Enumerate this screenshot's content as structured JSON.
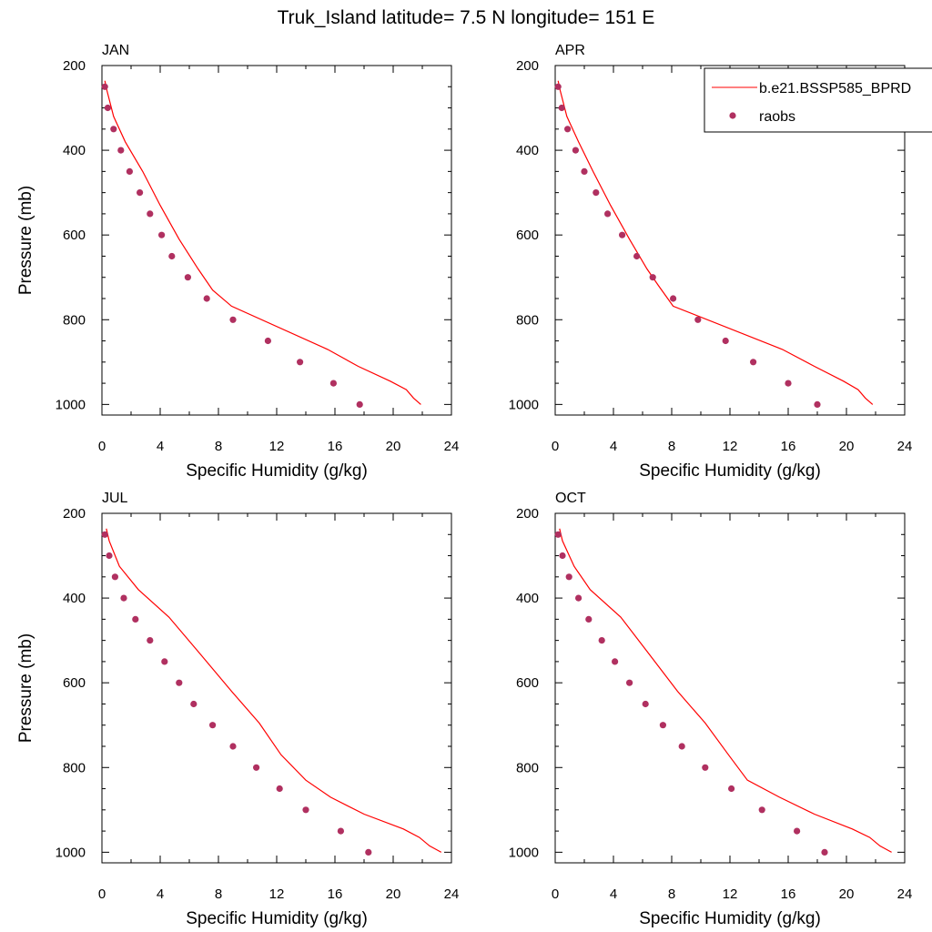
{
  "figure": {
    "title": "Truk_Island  latitude= 7.5 N longitude= 151 E"
  },
  "legend": {
    "model_label": "b.e21.BSSP585_BPRD",
    "obs_label": "raobs",
    "model_color": "#ff0000",
    "obs_color": "#b03060",
    "placement": "top-right of APR panel"
  },
  "chart_data": [
    {
      "type": "line",
      "title": "JAN",
      "xlabel": "Specific Humidity (g/kg)",
      "ylabel": "Pressure (mb)",
      "xlim": [
        0,
        24
      ],
      "ylim": [
        200,
        1025
      ],
      "y_reversed": true,
      "xticks": [
        "0",
        "4",
        "8",
        "12",
        "16",
        "20",
        "24"
      ],
      "yticks": [
        "200",
        "400",
        "600",
        "800",
        "1000"
      ],
      "series": [
        {
          "name": "b.e21.BSSP585_BPRD",
          "style": "line",
          "x": [
            0.2,
            0.35,
            0.8,
            1.6,
            2.8,
            4.0,
            5.3,
            6.6,
            7.6,
            8.9,
            15.5,
            17.6,
            19.8,
            20.9,
            21.4,
            21.9
          ],
          "y": [
            236,
            260,
            320,
            380,
            450,
            530,
            610,
            680,
            730,
            768,
            870,
            910,
            945,
            965,
            985,
            1000
          ]
        },
        {
          "name": "raobs",
          "style": "markers",
          "x": [
            0.2,
            0.4,
            0.8,
            1.3,
            1.9,
            2.6,
            3.3,
            4.1,
            4.8,
            5.9,
            7.2,
            9.0,
            11.4,
            13.6,
            15.9,
            17.7
          ],
          "y": [
            250,
            300,
            350,
            400,
            450,
            500,
            550,
            600,
            650,
            700,
            750,
            800,
            850,
            900,
            950,
            1000
          ]
        }
      ]
    },
    {
      "type": "line",
      "title": "APR",
      "xlabel": "Specific Humidity (g/kg)",
      "ylabel": "",
      "xlim": [
        0,
        24
      ],
      "ylim": [
        200,
        1025
      ],
      "y_reversed": true,
      "xticks": [
        "0",
        "4",
        "8",
        "12",
        "16",
        "20",
        "24"
      ],
      "yticks": [
        "200",
        "400",
        "600",
        "800",
        "1000"
      ],
      "series": [
        {
          "name": "b.e21.BSSP585_BPRD",
          "style": "line",
          "x": [
            0.2,
            0.35,
            0.8,
            1.6,
            2.6,
            3.8,
            5.1,
            6.3,
            7.1,
            8.1,
            15.6,
            17.8,
            19.8,
            20.8,
            21.3,
            21.8
          ],
          "y": [
            236,
            260,
            320,
            380,
            450,
            530,
            610,
            680,
            720,
            768,
            870,
            910,
            945,
            965,
            985,
            1000
          ]
        },
        {
          "name": "raobs",
          "style": "markers",
          "x": [
            0.2,
            0.45,
            0.85,
            1.4,
            2.0,
            2.8,
            3.6,
            4.6,
            5.6,
            6.7,
            8.1,
            9.8,
            11.7,
            13.6,
            16.0,
            18.0
          ],
          "y": [
            250,
            300,
            350,
            400,
            450,
            500,
            550,
            600,
            650,
            700,
            750,
            800,
            850,
            900,
            950,
            1000
          ]
        }
      ]
    },
    {
      "type": "line",
      "title": "JUL",
      "xlabel": "Specific Humidity (g/kg)",
      "ylabel": "Pressure (mb)",
      "xlim": [
        0,
        24
      ],
      "ylim": [
        200,
        1025
      ],
      "y_reversed": true,
      "xticks": [
        "0",
        "4",
        "8",
        "12",
        "16",
        "20",
        "24"
      ],
      "yticks": [
        "200",
        "400",
        "600",
        "800",
        "1000"
      ],
      "series": [
        {
          "name": "b.e21.BSSP585_BPRD",
          "style": "line",
          "x": [
            0.3,
            0.5,
            1.2,
            2.5,
            4.6,
            6.7,
            8.9,
            10.8,
            12.3,
            14.0,
            15.7,
            18.0,
            20.7,
            21.8,
            22.5,
            23.3
          ],
          "y": [
            236,
            265,
            325,
            380,
            445,
            530,
            620,
            695,
            770,
            830,
            870,
            910,
            945,
            965,
            985,
            1000
          ]
        },
        {
          "name": "raobs",
          "style": "markers",
          "x": [
            0.2,
            0.5,
            0.9,
            1.5,
            2.3,
            3.3,
            4.3,
            5.3,
            6.3,
            7.6,
            9.0,
            10.6,
            12.2,
            14.0,
            16.4,
            18.3
          ],
          "y": [
            250,
            300,
            350,
            400,
            450,
            500,
            550,
            600,
            650,
            700,
            750,
            800,
            850,
            900,
            950,
            1000
          ]
        }
      ]
    },
    {
      "type": "line",
      "title": "OCT",
      "xlabel": "Specific Humidity (g/kg)",
      "ylabel": "",
      "xlim": [
        0,
        24
      ],
      "ylim": [
        200,
        1025
      ],
      "y_reversed": true,
      "xticks": [
        "0",
        "4",
        "8",
        "12",
        "16",
        "20",
        "24"
      ],
      "yticks": [
        "200",
        "400",
        "600",
        "800",
        "1000"
      ],
      "series": [
        {
          "name": "b.e21.BSSP585_BPRD",
          "style": "line",
          "x": [
            0.3,
            0.5,
            1.3,
            2.4,
            4.5,
            6.4,
            8.4,
            10.3,
            11.9,
            13.2,
            15.4,
            17.8,
            20.4,
            21.6,
            22.3,
            23.1
          ],
          "y": [
            236,
            265,
            325,
            380,
            445,
            530,
            620,
            695,
            770,
            830,
            870,
            910,
            945,
            965,
            985,
            1000
          ]
        },
        {
          "name": "raobs",
          "style": "markers",
          "x": [
            0.2,
            0.5,
            0.95,
            1.6,
            2.3,
            3.2,
            4.1,
            5.1,
            6.2,
            7.4,
            8.7,
            10.3,
            12.1,
            14.2,
            16.6,
            18.5
          ],
          "y": [
            250,
            300,
            350,
            400,
            450,
            500,
            550,
            600,
            650,
            700,
            750,
            800,
            850,
            900,
            950,
            1000
          ]
        }
      ]
    }
  ]
}
